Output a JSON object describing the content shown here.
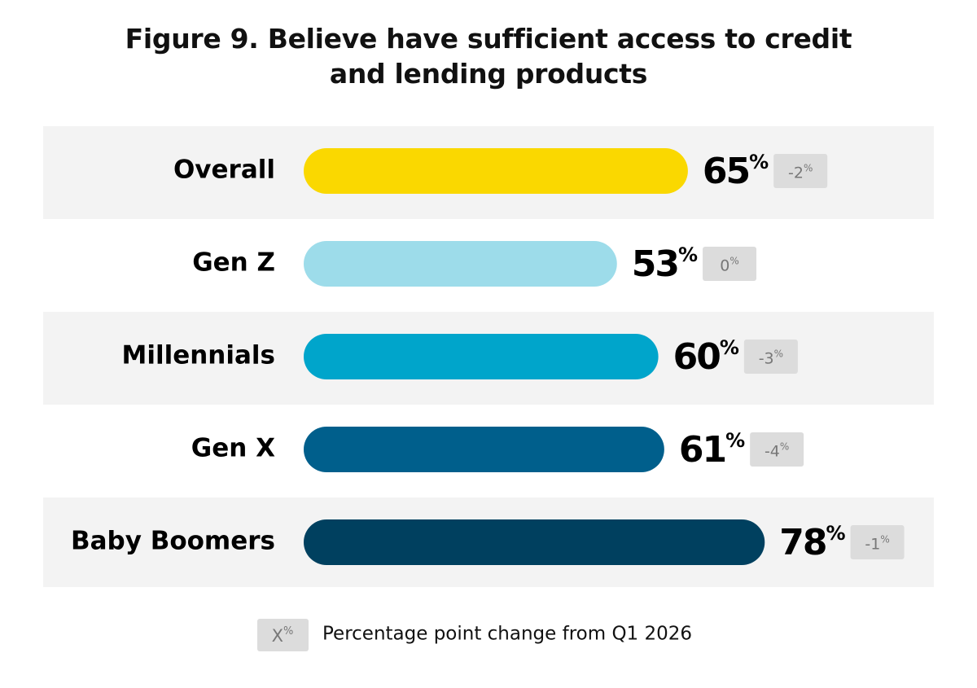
{
  "chart_data": {
    "type": "bar",
    "orientation": "horizontal",
    "title": "Figure 9. Believe have sufficient access to credit and lending products",
    "categories": [
      "Overall",
      "Gen Z",
      "Millennials",
      "Gen X",
      "Baby Boomers"
    ],
    "values": [
      65,
      53,
      60,
      61,
      78
    ],
    "value_labels": [
      "65%",
      "53%",
      "60%",
      "61%",
      "78%"
    ],
    "colors": [
      "#fad800",
      "#9ddcea",
      "#00a5cb",
      "#005f8c",
      "#00405f"
    ],
    "changes": [
      -2,
      0,
      -3,
      -4,
      -1
    ],
    "change_labels": [
      "-2%",
      "0%",
      "-3%",
      "-4%",
      "-1%"
    ],
    "xlim": [
      0,
      100
    ],
    "legend": {
      "symbol": "X%",
      "label": "Percentage point change from Q1 2026"
    }
  }
}
